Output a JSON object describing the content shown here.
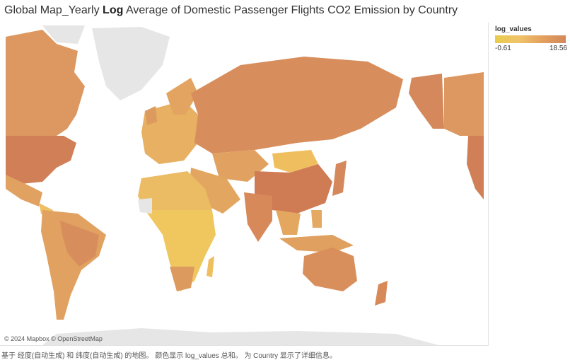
{
  "header": {
    "title_prefix": "Global Map_Yearly ",
    "title_bold": "Log",
    "title_suffix": " Average of Domestic Passenger Flights CO2 Emission by Country"
  },
  "map": {
    "attribution": "© 2024 Mapbox © OpenStreetMap",
    "colors": {
      "low": "#e8cd4d",
      "mid": "#efb862",
      "high": "#d4885b",
      "no_data": "#e6e6e6"
    }
  },
  "legend": {
    "title": "log_values",
    "min_label": "-0.61",
    "max_label": "18.56"
  },
  "footer": {
    "caption": "基于 经度(自动生成) 和 纬度(自动生成) 的地图。 颜色显示 log_values 总和。 为 Country 显示了详细信息。"
  }
}
